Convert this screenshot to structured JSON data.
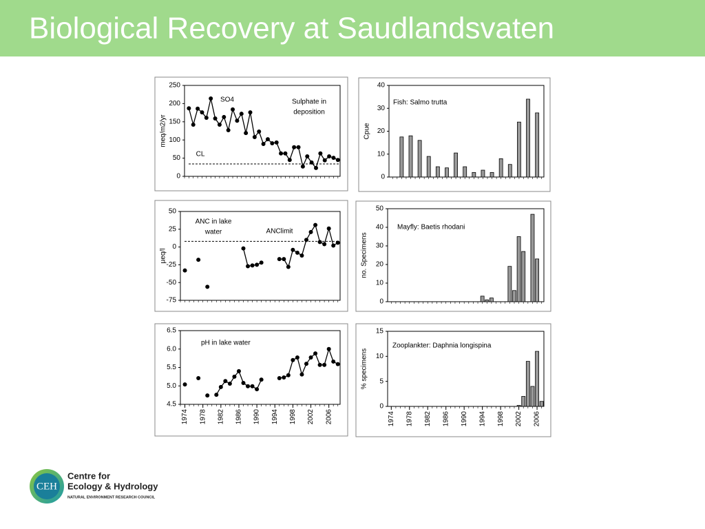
{
  "title": "Biological Recovery at Saudlandsvaten",
  "logo": {
    "mark": "CEH",
    "name": [
      "Centre for",
      "Ecology & Hydrology"
    ],
    "council": "NATURAL ENVIRONMENT RESEARCH COUNCIL"
  },
  "chart_data": [
    {
      "type": "line",
      "ylabel": "meq/m2/yr",
      "color": "#000000",
      "x": [
        1974,
        1975,
        1976,
        1977,
        1978,
        1979,
        1980,
        1981,
        1982,
        1983,
        1984,
        1985,
        1986,
        1987,
        1988,
        1989,
        1990,
        1991,
        1992,
        1993,
        1994,
        1995,
        1996,
        1997,
        1998,
        1999,
        2000,
        2001,
        2002,
        2003,
        2004,
        2005,
        2006,
        2007,
        2008
      ],
      "values": [
        187,
        142,
        186,
        176,
        161,
        214,
        159,
        142,
        163,
        127,
        184,
        153,
        172,
        119,
        176,
        108,
        123,
        89,
        102,
        91,
        93,
        63,
        63,
        45,
        80,
        80,
        27,
        55,
        38,
        23,
        63,
        44,
        55,
        51,
        45
      ],
      "xlim": [
        1973,
        2008.5
      ],
      "ylim": [
        0,
        250
      ],
      "yticks": [
        0,
        50,
        100,
        150,
        200,
        250
      ],
      "annotations": [
        [
          "SO4"
        ],
        [
          "Sulphate in",
          "deposition"
        ]
      ],
      "reference_line": {
        "value": 34,
        "label": "CL"
      }
    },
    {
      "type": "bar",
      "ylabel": "Cpue",
      "color": "#999999",
      "x": [
        1976,
        1978,
        1980,
        1982,
        1984,
        1986,
        1988,
        1990,
        1992,
        1994,
        1996,
        1998,
        2000,
        2002,
        2004,
        2006
      ],
      "values": [
        17.5,
        18,
        16,
        9,
        4.5,
        4,
        10.5,
        4.5,
        2,
        3,
        2,
        8,
        5.5,
        24,
        34,
        28
      ],
      "xlim": [
        1973.2,
        2007.5
      ],
      "ylim": [
        0,
        40
      ],
      "yticks": [
        0,
        10,
        20,
        30,
        40
      ],
      "annotations": [
        [
          "Fish: Salmo trutta"
        ]
      ]
    },
    {
      "type": "line",
      "ylabel": "µeq/l",
      "color": "#000000",
      "x": [
        1974,
        1975,
        1976,
        1977,
        1978,
        1979,
        1980,
        1981,
        1982,
        1983,
        1984,
        1985,
        1986,
        1987,
        1988,
        1989,
        1990,
        1991,
        1992,
        1993,
        1994,
        1995,
        1996,
        1997,
        1998,
        1999,
        2000,
        2001,
        2002,
        2003,
        2004,
        2005,
        2006,
        2007,
        2008
      ],
      "values": [
        -33,
        null,
        null,
        -18,
        null,
        -56,
        null,
        null,
        null,
        null,
        null,
        null,
        null,
        -2,
        -27,
        -26,
        -25,
        -22,
        null,
        null,
        null,
        -17,
        -17,
        -28,
        -4,
        -8,
        -12,
        10,
        21,
        31,
        7,
        4,
        26,
        2,
        6
      ],
      "xlim": [
        1973,
        2008.5
      ],
      "ylim": [
        -75,
        50
      ],
      "yticks": [
        -75,
        -50,
        -25,
        0,
        25,
        50
      ],
      "annotations": [
        [
          "ANC in lake",
          "water"
        ]
      ],
      "reference_line": {
        "value": 8,
        "label": "ANClimit"
      }
    },
    {
      "type": "bar",
      "ylabel": "no. Specimens",
      "color": "#999999",
      "x": [
        1994,
        1995,
        1996,
        2000,
        2001,
        2002,
        2003,
        2005,
        2006
      ],
      "values": [
        3,
        1,
        2,
        19,
        6,
        35,
        27,
        47,
        23
      ],
      "xlim": [
        1973.2,
        2007.5
      ],
      "ylim": [
        0,
        50
      ],
      "yticks": [
        0,
        10,
        20,
        30,
        40,
        50
      ],
      "annotations": [
        [
          "Mayfly: Baetis rhodani"
        ]
      ]
    },
    {
      "type": "line",
      "color": "#000000",
      "x": [
        1974,
        1975,
        1976,
        1977,
        1978,
        1979,
        1980,
        1981,
        1982,
        1983,
        1984,
        1985,
        1986,
        1987,
        1988,
        1989,
        1990,
        1991,
        1992,
        1993,
        1994,
        1995,
        1996,
        1997,
        1998,
        1999,
        2000,
        2001,
        2002,
        2003,
        2004,
        2005,
        2006,
        2007,
        2008
      ],
      "values": [
        5.04,
        null,
        null,
        5.21,
        null,
        4.74,
        null,
        4.76,
        4.97,
        5.13,
        5.06,
        5.25,
        5.4,
        5.08,
        4.99,
        4.99,
        4.91,
        5.17,
        null,
        null,
        null,
        5.21,
        5.23,
        5.29,
        5.7,
        5.77,
        5.31,
        5.6,
        5.77,
        5.88,
        5.57,
        5.57,
        6.0,
        5.66,
        5.59
      ],
      "xlim": [
        1973,
        2008.5
      ],
      "xticks": [
        1974,
        1978,
        1982,
        1986,
        1990,
        1994,
        1998,
        2002,
        2006
      ],
      "ylim": [
        4.5,
        6.5
      ],
      "yticks": [
        4.5,
        {
          "value": 5,
          "label": "5.0"
        },
        5.5,
        {
          "value": 6,
          "label": "6.0"
        },
        6.5
      ],
      "annotations": [
        [
          "pH in lake water"
        ]
      ]
    },
    {
      "type": "bar",
      "ylabel": "% specimens",
      "color": "#999999",
      "x": [
        2002,
        2003,
        2004,
        2005,
        2006,
        2007
      ],
      "values": [
        0.2,
        2,
        9,
        4,
        11,
        1
      ],
      "xlim": [
        1973.2,
        2007.5
      ],
      "xticks": [
        1974,
        1978,
        1982,
        1986,
        1990,
        1994,
        1998,
        2002,
        2006
      ],
      "ylim": [
        0,
        15
      ],
      "yticks": [
        0,
        5,
        10,
        15
      ],
      "annotations": [
        [
          "Zooplankter: Daphnia longispina"
        ]
      ]
    }
  ]
}
